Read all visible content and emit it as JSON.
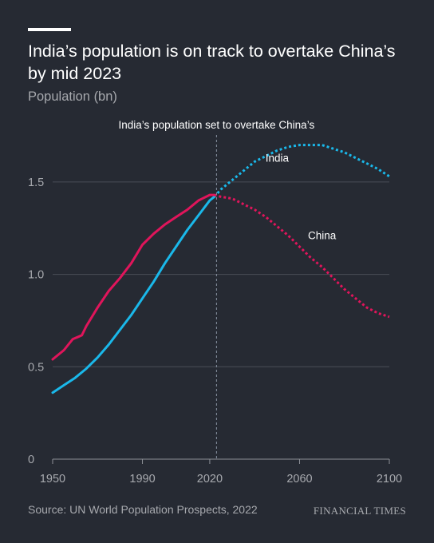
{
  "title": "India’s population is on track to overtake China’s by mid 2023",
  "subtitle": "Population (bn)",
  "source": "Source: UN World Population Prospects, 2022",
  "brand": "FINANCIAL TIMES",
  "colors": {
    "background": "#262a33",
    "india": "#1ab8ea",
    "china": "#e0155b",
    "text": "#ffffff",
    "muted": "#a7a9ae",
    "grid": "#4a4e57"
  },
  "chart_data": {
    "type": "line",
    "title": "India’s population is on track to overtake China’s by mid 2023",
    "subtitle": "Population (bn)",
    "xlim": [
      1950,
      2100
    ],
    "ylim": [
      0,
      1.75
    ],
    "xticks": [
      1950,
      1990,
      2020,
      2060,
      2100
    ],
    "xtick_labels": [
      "1950",
      "1990",
      "2020",
      "2060",
      "2100"
    ],
    "yticks": [
      0,
      0.5,
      1.0,
      1.5
    ],
    "ytick_labels": [
      "0",
      "0.5",
      "1.0",
      "1.5"
    ],
    "grid": true,
    "annotation": {
      "x": 2023,
      "text": "India’s population set to overtake China’s"
    },
    "projection_start": 2022,
    "series": [
      {
        "name": "India",
        "label_at": [
          2050,
          1.61
        ],
        "x": [
          1950,
          1955,
          1960,
          1965,
          1970,
          1975,
          1980,
          1985,
          1990,
          1995,
          2000,
          2005,
          2010,
          2015,
          2020,
          2022,
          2025,
          2030,
          2035,
          2040,
          2045,
          2050,
          2055,
          2060,
          2065,
          2070,
          2075,
          2080,
          2085,
          2090,
          2095,
          2100
        ],
        "y": [
          0.36,
          0.4,
          0.44,
          0.49,
          0.55,
          0.62,
          0.7,
          0.78,
          0.87,
          0.96,
          1.06,
          1.15,
          1.24,
          1.32,
          1.4,
          1.42,
          1.46,
          1.51,
          1.56,
          1.61,
          1.64,
          1.67,
          1.69,
          1.7,
          1.7,
          1.7,
          1.68,
          1.66,
          1.63,
          1.6,
          1.57,
          1.53
        ]
      },
      {
        "name": "China",
        "label_at": [
          2070,
          1.19
        ],
        "x": [
          1950,
          1955,
          1957,
          1959,
          1961,
          1963,
          1965,
          1970,
          1975,
          1980,
          1985,
          1990,
          1995,
          2000,
          2005,
          2010,
          2015,
          2020,
          2022,
          2025,
          2030,
          2035,
          2040,
          2045,
          2050,
          2055,
          2060,
          2065,
          2070,
          2075,
          2080,
          2085,
          2090,
          2095,
          2100
        ],
        "y": [
          0.54,
          0.59,
          0.62,
          0.65,
          0.66,
          0.67,
          0.72,
          0.82,
          0.91,
          0.98,
          1.06,
          1.16,
          1.22,
          1.27,
          1.31,
          1.35,
          1.4,
          1.43,
          1.43,
          1.42,
          1.41,
          1.38,
          1.35,
          1.31,
          1.26,
          1.21,
          1.15,
          1.09,
          1.04,
          0.98,
          0.92,
          0.87,
          0.82,
          0.79,
          0.77
        ]
      }
    ]
  }
}
